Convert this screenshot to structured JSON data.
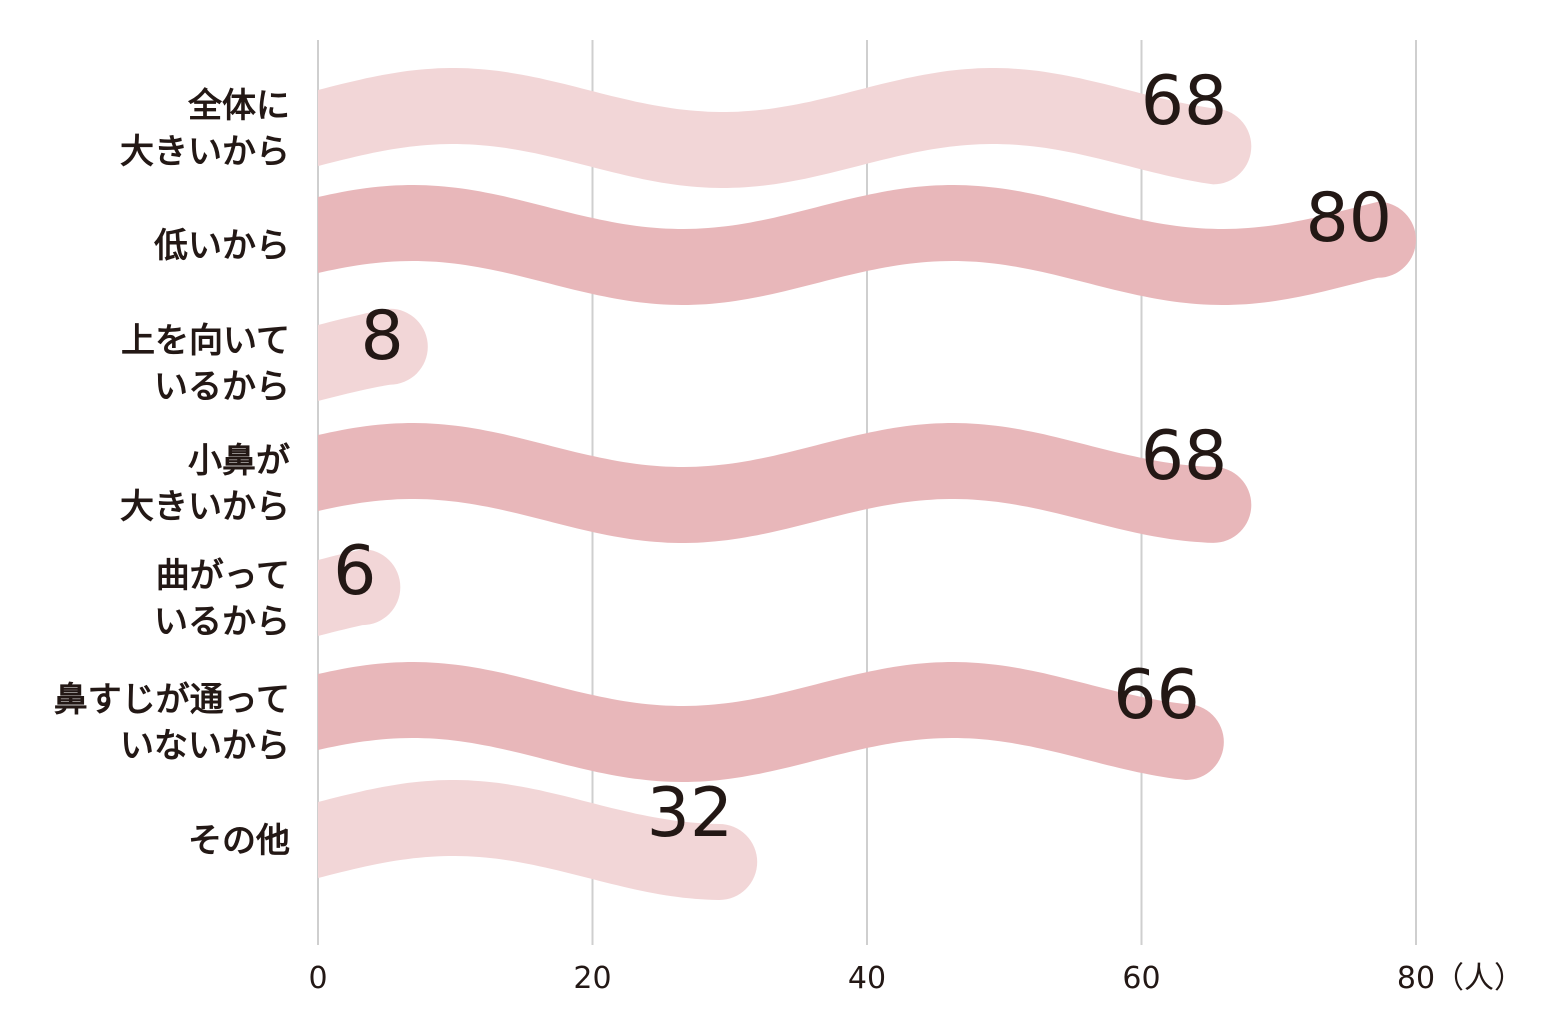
{
  "chart_data": {
    "type": "bar",
    "categories": [
      [
        "全体に",
        "大きいから"
      ],
      [
        "低いから"
      ],
      [
        "上を向いて",
        "いるから"
      ],
      [
        "小鼻が",
        "大きいから"
      ],
      [
        "曲がって",
        "いるから"
      ],
      [
        "鼻すじが通って",
        "いないから"
      ],
      [
        "その他"
      ]
    ],
    "values": [
      68,
      80,
      8,
      68,
      6,
      66,
      32
    ],
    "value_labels": [
      "68",
      "80",
      "8",
      "68",
      "6",
      "66",
      "32"
    ],
    "bar_colors": [
      "#f2d6d7",
      "#e8b7ba",
      "#f2d6d7",
      "#e8b7ba",
      "#f2d6d7",
      "#e8b7ba",
      "#f2d6d7"
    ],
    "x_ticks": [
      0,
      20,
      40,
      60,
      80
    ],
    "x_tick_labels": [
      "0",
      "20",
      "40",
      "60",
      "80"
    ],
    "unit": "（人）",
    "xlim": [
      0,
      80
    ],
    "grid": true,
    "title": "",
    "xlabel": "",
    "ylabel": ""
  },
  "colors": {
    "light_bar": "#f2d6d7",
    "dark_bar": "#e8b7ba",
    "grid": "#cfcfcf",
    "text": "#231815"
  }
}
